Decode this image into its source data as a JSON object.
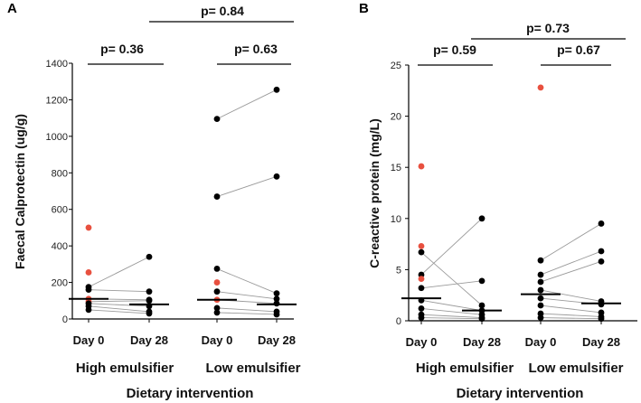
{
  "colors": {
    "normal": "#000000",
    "highlight": "#e8503f",
    "pair_line": "#9a9a9a"
  },
  "chart_data": [
    {
      "panel": "A",
      "type": "scatter",
      "subtype": "paired-dot-plot",
      "ylabel": "Faecal Calprotectin (ug/g)",
      "xlabel": "Dietary intervention",
      "ylim": [
        0,
        1400
      ],
      "yticks": [
        0,
        200,
        400,
        600,
        800,
        1000,
        1200,
        1400
      ],
      "categories": [
        "Day 0",
        "Day 28",
        "Day 0",
        "Day 28"
      ],
      "groups": [
        "High emulsifier",
        "Low emulsifier"
      ],
      "p_values": {
        "group1": "p= 0.36",
        "group2": "p= 0.63",
        "between": "p= 0.84"
      },
      "medians": [
        110,
        80,
        105,
        80
      ],
      "pairs": [
        [
          {
            "d0": 500,
            "d28": null,
            "red0": true
          },
          {
            "d0": 255,
            "d28": null,
            "red0": true
          },
          {
            "d0": 175,
            "d28": 340
          },
          {
            "d0": 160,
            "d28": 150
          },
          {
            "d0": 110,
            "d28": 105,
            "red0": true
          },
          {
            "d0": 95,
            "d28": 100,
            "red0": true
          },
          {
            "d0": 85,
            "d28": 70
          },
          {
            "d0": 70,
            "d28": 40
          },
          {
            "d0": 50,
            "d28": 30
          }
        ],
        [
          {
            "d0": 1095,
            "d28": 1255
          },
          {
            "d0": 670,
            "d28": 780
          },
          {
            "d0": 275,
            "d28": 140
          },
          {
            "d0": 200,
            "d28": null,
            "red0": true
          },
          {
            "d0": 150,
            "d28": 110
          },
          {
            "d0": 105,
            "d28": 85,
            "red0": true
          },
          {
            "d0": 60,
            "d28": 40
          },
          {
            "d0": 35,
            "d28": 25
          }
        ]
      ]
    },
    {
      "panel": "B",
      "type": "scatter",
      "subtype": "paired-dot-plot",
      "ylabel": "C-reactive protein (mg/L)",
      "xlabel": "Dietary intervention",
      "ylim": [
        0,
        25
      ],
      "yticks": [
        0,
        5,
        10,
        15,
        20,
        25
      ],
      "categories": [
        "Day 0",
        "Day 28",
        "Day 0",
        "Day 28"
      ],
      "groups": [
        "High emulsifier",
        "Low emulsifier"
      ],
      "p_values": {
        "group1": "p= 0.59",
        "group2": "p= 0.67",
        "between": "p= 0.73"
      },
      "medians": [
        2.2,
        1.0,
        2.6,
        1.7
      ],
      "pairs": [
        [
          {
            "d0": 15.1,
            "d28": null,
            "red0": true
          },
          {
            "d0": 7.3,
            "d28": null,
            "red0": true
          },
          {
            "d0": 6.7,
            "d28": 1.5
          },
          {
            "d0": 4.5,
            "d28": 10.0
          },
          {
            "d0": 4.1,
            "d28": null,
            "red0": true
          },
          {
            "d0": 3.2,
            "d28": 3.9
          },
          {
            "d0": 2.0,
            "d28": 1.0
          },
          {
            "d0": 1.2,
            "d28": 0.6
          },
          {
            "d0": 0.6,
            "d28": 0.3
          },
          {
            "d0": 0.3,
            "d28": 0.2
          }
        ],
        [
          {
            "d0": 22.8,
            "d28": null,
            "red0": true
          },
          {
            "d0": 5.9,
            "d28": 9.5
          },
          {
            "d0": 4.5,
            "d28": 6.8
          },
          {
            "d0": 3.8,
            "d28": 5.8
          },
          {
            "d0": 3.0,
            "d28": 1.9
          },
          {
            "d0": 2.2,
            "d28": 1.6
          },
          {
            "d0": 1.5,
            "d28": 0.8
          },
          {
            "d0": 0.7,
            "d28": 0.4
          },
          {
            "d0": 0.3,
            "d28": 0.2
          }
        ]
      ]
    }
  ]
}
